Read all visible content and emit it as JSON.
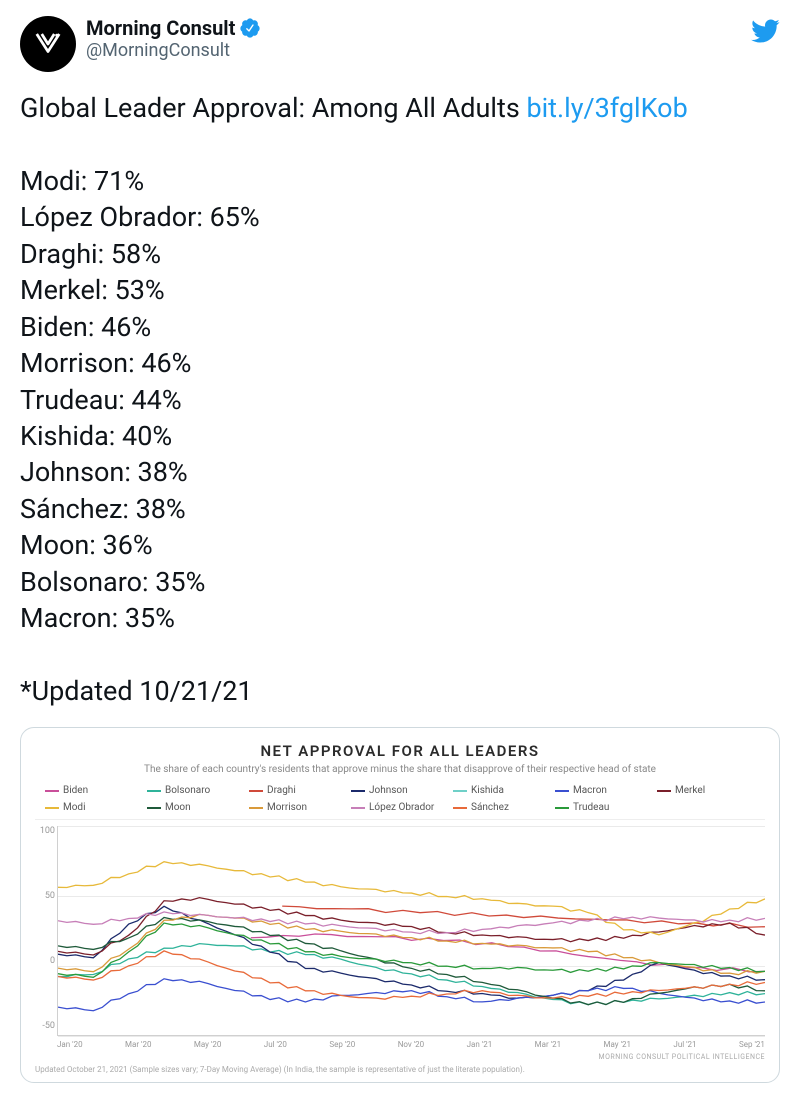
{
  "account": {
    "display_name": "Morning Consult",
    "handle": "@MorningConsult",
    "verified": true
  },
  "tweet": {
    "lead_text": "Global Leader Approval: Among All Adults ",
    "link_text": "bit.ly/3fglKob",
    "leaders": [
      {
        "name": "Modi",
        "pct": "71%"
      },
      {
        "name": "López Obrador",
        "pct": "65%"
      },
      {
        "name": "Draghi",
        "pct": "58%"
      },
      {
        "name": "Merkel",
        "pct": "53%"
      },
      {
        "name": "Biden",
        "pct": "46%"
      },
      {
        "name": "Morrison",
        "pct": "46%"
      },
      {
        "name": "Trudeau",
        "pct": "44%"
      },
      {
        "name": "Kishida",
        "pct": "40%"
      },
      {
        "name": "Johnson",
        "pct": "38%"
      },
      {
        "name": "Sánchez",
        "pct": "38%"
      },
      {
        "name": "Moon",
        "pct": "36%"
      },
      {
        "name": "Bolsonaro",
        "pct": "35%"
      },
      {
        "name": "Macron",
        "pct": "35%"
      }
    ],
    "updated_text": "*Updated 10/21/21"
  },
  "chart": {
    "type": "line",
    "title": "NET APPROVAL FOR ALL LEADERS",
    "subtitle": "The share of each country's residents that approve minus the share that disapprove of their respective head of state",
    "title_fontsize": 15,
    "subtitle_fontsize": 10,
    "background_color": "#ffffff",
    "grid_color": "#eaeaea",
    "axis_color": "#d0d0d0",
    "line_width": 1.3,
    "ylim": [
      -50,
      100
    ],
    "ytick_step": 50,
    "y_ticks": [
      "100",
      "50",
      "0",
      "-50"
    ],
    "x_ticks": [
      "Jan '20",
      "Mar '20",
      "May '20",
      "Jul '20",
      "Sep '20",
      "Nov '20",
      "Jan '21",
      "Mar '21",
      "May '21",
      "Jul '21",
      "Sep '21"
    ],
    "source_label": "MORNING CONSULT POLITICAL INTELLIGENCE",
    "footnote": "Updated October 21, 2021 (Sample sizes vary; 7-Day Moving Average) (In India, the sample is representative of just the literate population).",
    "series": [
      {
        "name": "Biden",
        "color": "#c94f9a",
        "values": [
          null,
          null,
          null,
          null,
          null,
          null,
          null,
          null,
          null,
          null,
          null,
          null,
          20,
          22,
          20,
          18,
          14,
          8,
          2,
          -2,
          -4
        ]
      },
      {
        "name": "Bolsonaro",
        "color": "#2fb39a",
        "values": [
          -8,
          -6,
          5,
          12,
          15,
          14,
          10,
          8,
          4,
          -2,
          -6,
          -10,
          -15,
          -20,
          -25,
          -28,
          -26,
          -24,
          -22,
          -20,
          -20
        ]
      },
      {
        "name": "Draghi",
        "color": "#d04a3a",
        "values": [
          null,
          null,
          null,
          null,
          null,
          null,
          null,
          null,
          null,
          null,
          null,
          null,
          null,
          42,
          40,
          38,
          36,
          34,
          32,
          30,
          28
        ]
      },
      {
        "name": "Johnson",
        "color": "#1b2a6b",
        "values": [
          8,
          6,
          30,
          42,
          32,
          22,
          10,
          -2,
          -6,
          -10,
          -14,
          -18,
          -20,
          -24,
          -22,
          -18,
          -10,
          2,
          -4,
          -8,
          -10
        ]
      },
      {
        "name": "Kishida",
        "color": "#6fd0c8",
        "values": [
          null,
          null,
          null,
          null,
          null,
          null,
          null,
          null,
          null,
          null,
          null,
          null,
          null,
          null,
          null,
          null,
          null,
          null,
          null,
          null,
          -4
        ]
      },
      {
        "name": "Macron",
        "color": "#3a4fd0",
        "values": [
          -30,
          -32,
          -20,
          -10,
          -12,
          -18,
          -24,
          -26,
          -22,
          -20,
          -18,
          -22,
          -26,
          -24,
          -22,
          -18,
          -16,
          -20,
          -24,
          -26,
          -26
        ]
      },
      {
        "name": "Merkel",
        "color": "#7a1f2a",
        "values": [
          10,
          8,
          22,
          46,
          48,
          44,
          40,
          36,
          32,
          30,
          28,
          24,
          22,
          20,
          18,
          18,
          20,
          24,
          28,
          30,
          22
        ]
      },
      {
        "name": "Modi",
        "color": "#e7b93a",
        "values": [
          56,
          58,
          66,
          74,
          72,
          68,
          64,
          60,
          56,
          54,
          52,
          50,
          48,
          44,
          42,
          38,
          26,
          22,
          30,
          40,
          48
        ]
      },
      {
        "name": "Moon",
        "color": "#1f5a3a",
        "values": [
          14,
          12,
          20,
          34,
          32,
          28,
          22,
          16,
          10,
          4,
          -2,
          -6,
          -12,
          -18,
          -24,
          -28,
          -26,
          -20,
          -16,
          -14,
          -18
        ]
      },
      {
        "name": "Morrison",
        "color": "#d99a3a",
        "values": [
          -2,
          -4,
          12,
          32,
          36,
          34,
          30,
          26,
          24,
          22,
          20,
          18,
          16,
          14,
          12,
          10,
          6,
          2,
          -2,
          -6,
          -4
        ]
      },
      {
        "name": "López Obrador",
        "color": "#c77fb8",
        "values": [
          32,
          30,
          34,
          38,
          36,
          34,
          32,
          30,
          28,
          26,
          24,
          24,
          26,
          28,
          30,
          32,
          34,
          34,
          32,
          32,
          34
        ]
      },
      {
        "name": "Sánchez",
        "color": "#e86a3a",
        "values": [
          -8,
          -10,
          0,
          10,
          4,
          -4,
          -12,
          -18,
          -22,
          -24,
          -22,
          -20,
          -18,
          -22,
          -24,
          -22,
          -20,
          -18,
          -16,
          -14,
          -12
        ]
      },
      {
        "name": "Trudeau",
        "color": "#2a9a3a",
        "values": [
          -6,
          -8,
          10,
          30,
          28,
          22,
          16,
          10,
          6,
          4,
          2,
          0,
          -2,
          -2,
          -4,
          -4,
          -2,
          2,
          0,
          -2,
          -4
        ]
      }
    ],
    "legend_order": [
      "Biden",
      "Bolsonaro",
      "Draghi",
      "Johnson",
      "Kishida",
      "Macron",
      "Merkel",
      "Modi",
      "Moon",
      "Morrison",
      "López Obrador",
      "Sánchez",
      "Trudeau"
    ]
  },
  "colors": {
    "twitter_blue": "#1d9bf0",
    "verified_blue": "#1d9bf0",
    "text_primary": "#0f1419",
    "text_secondary": "#536471",
    "card_border": "#cfd9de"
  }
}
